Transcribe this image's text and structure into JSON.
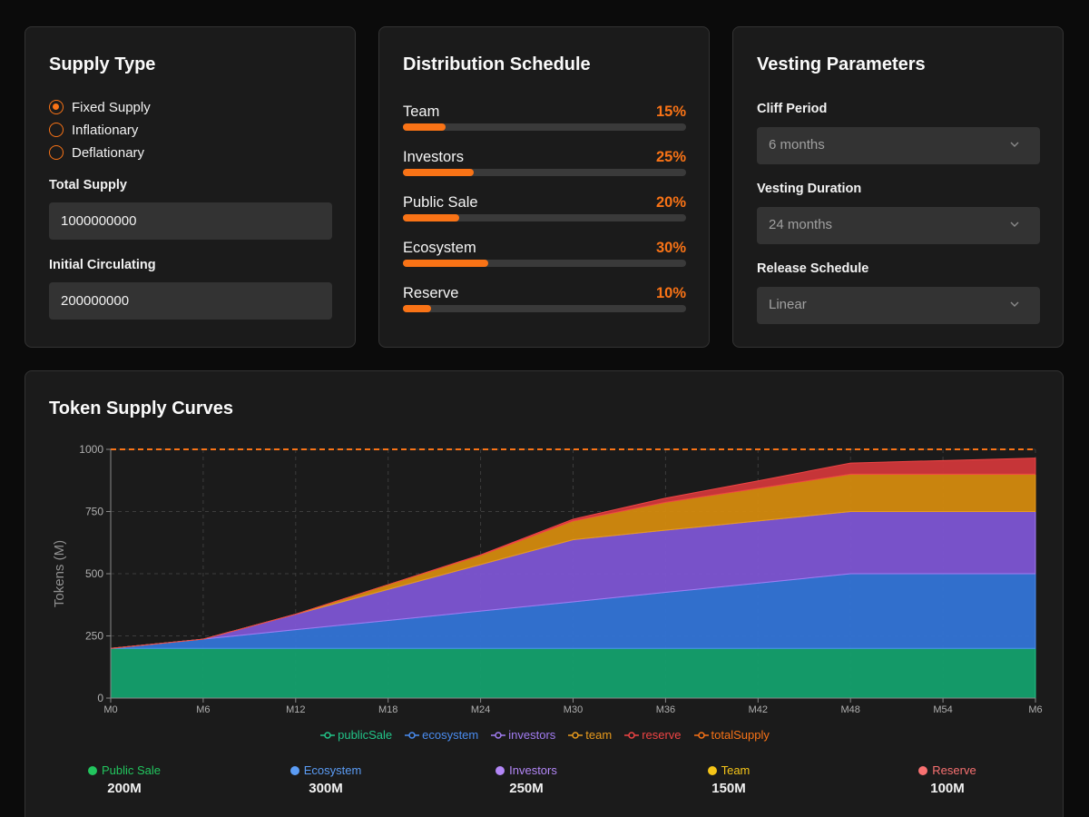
{
  "supply": {
    "title": "Supply Type",
    "options": [
      {
        "label": "Fixed Supply",
        "checked": true
      },
      {
        "label": "Inflationary",
        "checked": false
      },
      {
        "label": "Deflationary",
        "checked": false
      }
    ],
    "total_supply_label": "Total Supply",
    "total_supply_value": "1000000000",
    "initial_circ_label": "Initial Circulating",
    "initial_circ_value": "200000000"
  },
  "distribution": {
    "title": "Distribution Schedule",
    "items": [
      {
        "label": "Team",
        "pct": "15%",
        "value": 15
      },
      {
        "label": "Investors",
        "pct": "25%",
        "value": 25
      },
      {
        "label": "Public Sale",
        "pct": "20%",
        "value": 20
      },
      {
        "label": "Ecosystem",
        "pct": "30%",
        "value": 30
      },
      {
        "label": "Reserve",
        "pct": "10%",
        "value": 10
      }
    ]
  },
  "vesting": {
    "title": "Vesting Parameters",
    "cliff_label": "Cliff Period",
    "cliff_value": "6 months",
    "duration_label": "Vesting Duration",
    "duration_value": "24 months",
    "schedule_label": "Release Schedule",
    "schedule_value": "Linear"
  },
  "colors": {
    "accent": "#f97316",
    "publicSale": "#14a06d",
    "ecosystem": "#3374d6",
    "investors": "#7d55d3",
    "team": "#d38a0e",
    "reserve": "#d0373a"
  },
  "chart_title": "Token Supply Curves",
  "chart_data": {
    "type": "area",
    "stacked": true,
    "ylabel": "Tokens (M)",
    "ylim": [
      0,
      1000
    ],
    "yticks": [
      "0",
      "250",
      "500",
      "750",
      "1000"
    ],
    "x": [
      "M0",
      "M6",
      "M12",
      "M18",
      "M24",
      "M30",
      "M36",
      "M42",
      "M48",
      "M54",
      "M6"
    ],
    "series": [
      {
        "name": "publicSale",
        "color": "#14a06d",
        "legend_color": "#22c589",
        "values": [
          200,
          200,
          200,
          200,
          200,
          200,
          200,
          200,
          200,
          200,
          200
        ]
      },
      {
        "name": "ecosystem",
        "color": "#3374d6",
        "legend_color": "#4a8cf0",
        "values": [
          0,
          37,
          75,
          112,
          150,
          187,
          225,
          262,
          300,
          300,
          300
        ]
      },
      {
        "name": "investors",
        "color": "#7d55d3",
        "legend_color": "#a27cf2",
        "values": [
          0,
          0,
          62,
          125,
          187,
          250,
          250,
          250,
          250,
          250,
          250
        ]
      },
      {
        "name": "team",
        "color": "#d38a0e",
        "legend_color": "#e89a1c",
        "values": [
          0,
          0,
          0,
          19,
          37,
          75,
          112,
          131,
          150,
          150,
          150
        ]
      },
      {
        "name": "reserve",
        "color": "#d0373a",
        "legend_color": "#ef4444",
        "values": [
          0,
          0,
          0,
          0,
          2,
          7,
          17,
          30,
          45,
          55,
          65
        ]
      }
    ],
    "totalSupply": {
      "name": "totalSupply",
      "color": "#f97316",
      "value": 1000
    },
    "grid": true,
    "legend_position": "bottom"
  },
  "summary": [
    {
      "name": "Public Sale",
      "value": "200M",
      "color": "#22c55e"
    },
    {
      "name": "Ecosystem",
      "value": "300M",
      "color": "#5b9cf5"
    },
    {
      "name": "Investors",
      "value": "250M",
      "color": "#b387f7"
    },
    {
      "name": "Team",
      "value": "150M",
      "color": "#f5c518"
    },
    {
      "name": "Reserve",
      "value": "100M",
      "color": "#f87171"
    }
  ]
}
